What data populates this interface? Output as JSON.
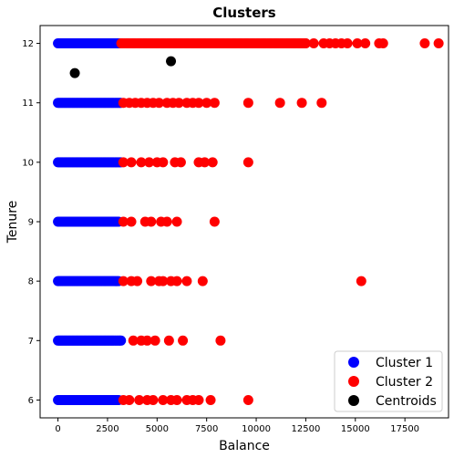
{
  "chart_data": {
    "type": "scatter",
    "title": "Clusters",
    "xlabel": "Balance",
    "ylabel": "Tenure",
    "xlim": [
      -900,
      19700
    ],
    "ylim": [
      5.7,
      12.3
    ],
    "x_ticks": [
      0,
      2500,
      5000,
      7500,
      10000,
      12500,
      15000,
      17500
    ],
    "x_tick_labels": [
      "0",
      "2500",
      "5000",
      "7500",
      "10000",
      "12500",
      "15000",
      "17500"
    ],
    "y_ticks": [
      6,
      7,
      8,
      9,
      10,
      11,
      12
    ],
    "y_tick_labels": [
      "6",
      "7",
      "8",
      "9",
      "10",
      "11",
      "12"
    ],
    "grid": false,
    "legend_position": "bottom-right",
    "series": [
      {
        "name": "Cluster 1",
        "color": "#0000ff",
        "bands": [
          {
            "y": 12,
            "x_min": 0,
            "x_max": 3200
          },
          {
            "y": 11,
            "x_min": 0,
            "x_max": 3200
          },
          {
            "y": 10,
            "x_min": 0,
            "x_max": 3200
          },
          {
            "y": 9,
            "x_min": 0,
            "x_max": 3100
          },
          {
            "y": 8,
            "x_min": 0,
            "x_max": 3100
          },
          {
            "y": 7,
            "x_min": 0,
            "x_max": 3200
          },
          {
            "y": 6,
            "x_min": 0,
            "x_max": 3100
          }
        ]
      },
      {
        "name": "Cluster 2",
        "color": "#ff0000",
        "points": [
          {
            "x": 3200,
            "y": 12
          },
          {
            "x": 3500,
            "y": 12
          },
          {
            "x": 3800,
            "y": 12
          },
          {
            "x": 4100,
            "y": 12
          },
          {
            "x": 4400,
            "y": 12
          },
          {
            "x": 4700,
            "y": 12
          },
          {
            "x": 5000,
            "y": 12
          },
          {
            "x": 5300,
            "y": 12
          },
          {
            "x": 5600,
            "y": 12
          },
          {
            "x": 5900,
            "y": 12
          },
          {
            "x": 6200,
            "y": 12
          },
          {
            "x": 6500,
            "y": 12
          },
          {
            "x": 6800,
            "y": 12
          },
          {
            "x": 7100,
            "y": 12
          },
          {
            "x": 7400,
            "y": 12
          },
          {
            "x": 7700,
            "y": 12
          },
          {
            "x": 8000,
            "y": 12
          },
          {
            "x": 8300,
            "y": 12
          },
          {
            "x": 8600,
            "y": 12
          },
          {
            "x": 8900,
            "y": 12
          },
          {
            "x": 9200,
            "y": 12
          },
          {
            "x": 9500,
            "y": 12
          },
          {
            "x": 9800,
            "y": 12
          },
          {
            "x": 10100,
            "y": 12
          },
          {
            "x": 10400,
            "y": 12
          },
          {
            "x": 10700,
            "y": 12
          },
          {
            "x": 11000,
            "y": 12
          },
          {
            "x": 11300,
            "y": 12
          },
          {
            "x": 11600,
            "y": 12
          },
          {
            "x": 11900,
            "y": 12
          },
          {
            "x": 12200,
            "y": 12
          },
          {
            "x": 12500,
            "y": 12
          },
          {
            "x": 12900,
            "y": 12
          },
          {
            "x": 13400,
            "y": 12
          },
          {
            "x": 13700,
            "y": 12
          },
          {
            "x": 14000,
            "y": 12
          },
          {
            "x": 14300,
            "y": 12
          },
          {
            "x": 14600,
            "y": 12
          },
          {
            "x": 15100,
            "y": 12
          },
          {
            "x": 15500,
            "y": 12
          },
          {
            "x": 16200,
            "y": 12
          },
          {
            "x": 16400,
            "y": 12
          },
          {
            "x": 18500,
            "y": 12
          },
          {
            "x": 19200,
            "y": 12
          },
          {
            "x": 3300,
            "y": 11
          },
          {
            "x": 3600,
            "y": 11
          },
          {
            "x": 3900,
            "y": 11
          },
          {
            "x": 4200,
            "y": 11
          },
          {
            "x": 4500,
            "y": 11
          },
          {
            "x": 4800,
            "y": 11
          },
          {
            "x": 5100,
            "y": 11
          },
          {
            "x": 5500,
            "y": 11
          },
          {
            "x": 5800,
            "y": 11
          },
          {
            "x": 6100,
            "y": 11
          },
          {
            "x": 6500,
            "y": 11
          },
          {
            "x": 6800,
            "y": 11
          },
          {
            "x": 7100,
            "y": 11
          },
          {
            "x": 7500,
            "y": 11
          },
          {
            "x": 7900,
            "y": 11
          },
          {
            "x": 9600,
            "y": 11
          },
          {
            "x": 11200,
            "y": 11
          },
          {
            "x": 12300,
            "y": 11
          },
          {
            "x": 13300,
            "y": 11
          },
          {
            "x": 3300,
            "y": 10
          },
          {
            "x": 3700,
            "y": 10
          },
          {
            "x": 4200,
            "y": 10
          },
          {
            "x": 4600,
            "y": 10
          },
          {
            "x": 5000,
            "y": 10
          },
          {
            "x": 5300,
            "y": 10
          },
          {
            "x": 5900,
            "y": 10
          },
          {
            "x": 6200,
            "y": 10
          },
          {
            "x": 7100,
            "y": 10
          },
          {
            "x": 7400,
            "y": 10
          },
          {
            "x": 7800,
            "y": 10
          },
          {
            "x": 9600,
            "y": 10
          },
          {
            "x": 3300,
            "y": 9
          },
          {
            "x": 3700,
            "y": 9
          },
          {
            "x": 4400,
            "y": 9
          },
          {
            "x": 4700,
            "y": 9
          },
          {
            "x": 5200,
            "y": 9
          },
          {
            "x": 5500,
            "y": 9
          },
          {
            "x": 6000,
            "y": 9
          },
          {
            "x": 7900,
            "y": 9
          },
          {
            "x": 3300,
            "y": 8
          },
          {
            "x": 3700,
            "y": 8
          },
          {
            "x": 4000,
            "y": 8
          },
          {
            "x": 4700,
            "y": 8
          },
          {
            "x": 5100,
            "y": 8
          },
          {
            "x": 5300,
            "y": 8
          },
          {
            "x": 5700,
            "y": 8
          },
          {
            "x": 6000,
            "y": 8
          },
          {
            "x": 6500,
            "y": 8
          },
          {
            "x": 7300,
            "y": 8
          },
          {
            "x": 15300,
            "y": 8
          },
          {
            "x": 3800,
            "y": 7
          },
          {
            "x": 4200,
            "y": 7
          },
          {
            "x": 4500,
            "y": 7
          },
          {
            "x": 4900,
            "y": 7
          },
          {
            "x": 5600,
            "y": 7
          },
          {
            "x": 6300,
            "y": 7
          },
          {
            "x": 8200,
            "y": 7
          },
          {
            "x": 3300,
            "y": 6
          },
          {
            "x": 3600,
            "y": 6
          },
          {
            "x": 4100,
            "y": 6
          },
          {
            "x": 4500,
            "y": 6
          },
          {
            "x": 4800,
            "y": 6
          },
          {
            "x": 5300,
            "y": 6
          },
          {
            "x": 5700,
            "y": 6
          },
          {
            "x": 6000,
            "y": 6
          },
          {
            "x": 6500,
            "y": 6
          },
          {
            "x": 6800,
            "y": 6
          },
          {
            "x": 7100,
            "y": 6
          },
          {
            "x": 7700,
            "y": 6
          },
          {
            "x": 9600,
            "y": 6
          }
        ]
      },
      {
        "name": "Centroids",
        "color": "#000000",
        "points": [
          {
            "x": 850,
            "y": 11.5
          },
          {
            "x": 5700,
            "y": 11.7
          }
        ]
      }
    ]
  }
}
